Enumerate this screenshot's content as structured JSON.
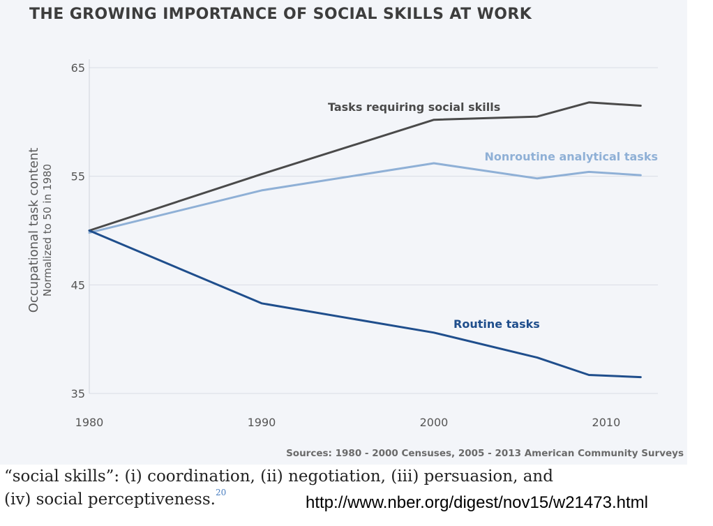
{
  "title": "THE GROWING IMPORTANCE OF SOCIAL SKILLS AT WORK",
  "chart_data": {
    "type": "line",
    "title": "THE GROWING IMPORTANCE OF SOCIAL SKILLS AT WORK",
    "ylabel": "Occupational task content",
    "ylabel_sub": "Normalized to 50 in 1980",
    "xlabel": "",
    "xlim": [
      1980,
      2013
    ],
    "ylim": [
      35,
      65
    ],
    "xticks": [
      1980,
      1990,
      2000,
      2010
    ],
    "yticks": [
      35,
      45,
      55,
      65
    ],
    "grid": "horizontal",
    "legend": "inline labels",
    "series": [
      {
        "name": "Tasks requiring social skills",
        "color": "#4a4a4a",
        "x": [
          1980,
          1990,
          2000,
          2006,
          2009,
          2012
        ],
        "y": [
          50,
          55.2,
          60.2,
          60.5,
          61.8,
          61.5
        ]
      },
      {
        "name": "Nonroutine analytical tasks",
        "color": "#8fb0d6",
        "x": [
          1980,
          1990,
          2000,
          2006,
          2009,
          2012
        ],
        "y": [
          49.8,
          53.7,
          56.2,
          54.8,
          55.4,
          55.1
        ]
      },
      {
        "name": "Routine tasks",
        "color": "#1f4e8c",
        "x": [
          1980,
          1990,
          2000,
          2006,
          2009,
          2012
        ],
        "y": [
          50,
          43.3,
          40.6,
          38.3,
          36.7,
          36.5
        ]
      }
    ],
    "source": "Sources: 1980 - 2000 Censuses, 2005 - 2013 American Community Surveys"
  },
  "footer": {
    "note_line1": "“social skills”: (i) coordination, (ii) negotiation, (iii) persuasion, and",
    "note_line2": "(iv) social perceptiveness.",
    "footnote_ref": "20",
    "url": "http://www.nber.org/digest/nov15/w21473.html"
  }
}
